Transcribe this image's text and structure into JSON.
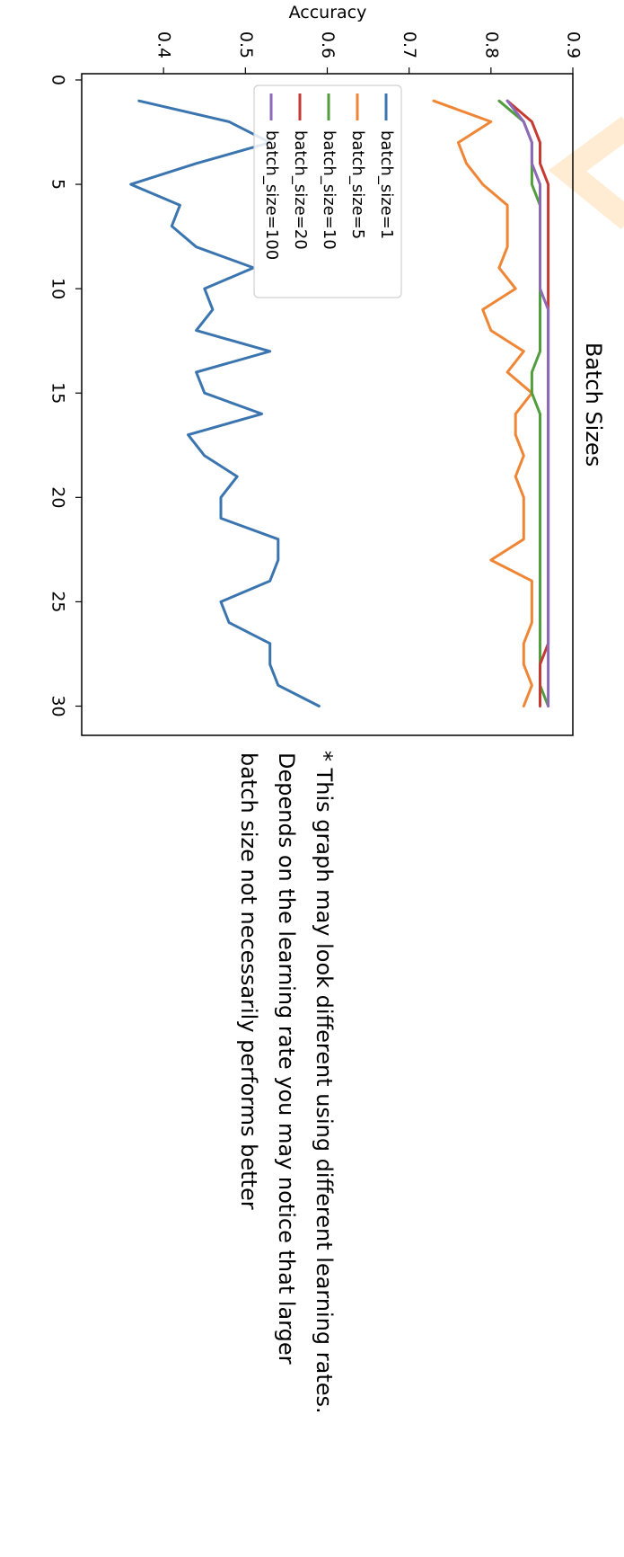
{
  "chart_data": {
    "type": "line",
    "title": "Batch Sizes",
    "xlabel": "",
    "ylabel": "Accuracy",
    "xlim": [
      -0.3,
      31.4
    ],
    "ylim": [
      0.3,
      0.9
    ],
    "xticks": [
      0,
      5,
      10,
      15,
      20,
      25,
      30
    ],
    "yticks": [
      0.4,
      0.5,
      0.6,
      0.7,
      0.8,
      0.9
    ],
    "grid": false,
    "legend": "top-left",
    "colors": {
      "batch_size=1": "#3b75af",
      "batch_size=5": "#ef8636",
      "batch_size=10": "#519e3e",
      "batch_size=20": "#c53a32",
      "batch_size=100": "#8d69b8"
    },
    "series": [
      {
        "name": "batch_size=1",
        "x": [
          1,
          2,
          3,
          4,
          5,
          6,
          7,
          8,
          9,
          10,
          11,
          12,
          13,
          14,
          15,
          16,
          17,
          18,
          19,
          20,
          21,
          22,
          23,
          24,
          25,
          26,
          27,
          28,
          29,
          30
        ],
        "values": [
          0.37,
          0.48,
          0.53,
          0.44,
          0.36,
          0.42,
          0.41,
          0.44,
          0.51,
          0.45,
          0.46,
          0.44,
          0.53,
          0.44,
          0.45,
          0.52,
          0.43,
          0.45,
          0.49,
          0.47,
          0.47,
          0.54,
          0.54,
          0.53,
          0.47,
          0.48,
          0.53,
          0.53,
          0.54,
          0.59
        ]
      },
      {
        "name": "batch_size=5",
        "x": [
          1,
          2,
          3,
          4,
          5,
          6,
          7,
          8,
          9,
          10,
          11,
          12,
          13,
          14,
          15,
          16,
          17,
          18,
          19,
          20,
          21,
          22,
          23,
          24,
          25,
          26,
          27,
          28,
          29,
          30
        ],
        "values": [
          0.73,
          0.8,
          0.76,
          0.77,
          0.79,
          0.82,
          0.82,
          0.82,
          0.81,
          0.83,
          0.79,
          0.8,
          0.84,
          0.82,
          0.85,
          0.83,
          0.83,
          0.84,
          0.83,
          0.84,
          0.84,
          0.84,
          0.8,
          0.85,
          0.85,
          0.85,
          0.84,
          0.84,
          0.85,
          0.84
        ]
      },
      {
        "name": "batch_size=10",
        "x": [
          1,
          2,
          3,
          4,
          5,
          6,
          7,
          8,
          9,
          10,
          11,
          12,
          13,
          14,
          15,
          16,
          17,
          18,
          19,
          20,
          21,
          22,
          23,
          24,
          25,
          26,
          27,
          28,
          29,
          30
        ],
        "values": [
          0.81,
          0.84,
          0.85,
          0.85,
          0.85,
          0.86,
          0.86,
          0.86,
          0.86,
          0.86,
          0.86,
          0.86,
          0.86,
          0.85,
          0.85,
          0.86,
          0.86,
          0.86,
          0.86,
          0.86,
          0.86,
          0.86,
          0.86,
          0.86,
          0.86,
          0.86,
          0.86,
          0.86,
          0.86,
          0.87
        ]
      },
      {
        "name": "batch_size=20",
        "x": [
          1,
          2,
          3,
          4,
          5,
          6,
          7,
          8,
          9,
          10,
          11,
          12,
          13,
          14,
          15,
          16,
          17,
          18,
          19,
          20,
          21,
          22,
          23,
          24,
          25,
          26,
          27,
          28,
          29,
          30
        ],
        "values": [
          0.82,
          0.85,
          0.86,
          0.86,
          0.87,
          0.87,
          0.87,
          0.87,
          0.87,
          0.87,
          0.87,
          0.87,
          0.87,
          0.87,
          0.87,
          0.87,
          0.87,
          0.87,
          0.87,
          0.87,
          0.87,
          0.87,
          0.87,
          0.87,
          0.87,
          0.87,
          0.87,
          0.86,
          0.86,
          0.86
        ]
      },
      {
        "name": "batch_size=100",
        "x": [
          1,
          2,
          3,
          4,
          5,
          6,
          7,
          8,
          9,
          10,
          11,
          12,
          13,
          14,
          15,
          16,
          17,
          18,
          19,
          20,
          21,
          22,
          23,
          24,
          25,
          26,
          27,
          28,
          29,
          30
        ],
        "values": [
          0.82,
          0.84,
          0.85,
          0.85,
          0.86,
          0.86,
          0.86,
          0.86,
          0.86,
          0.86,
          0.87,
          0.87,
          0.87,
          0.87,
          0.87,
          0.87,
          0.87,
          0.87,
          0.87,
          0.87,
          0.87,
          0.87,
          0.87,
          0.87,
          0.87,
          0.87,
          0.87,
          0.87,
          0.87,
          0.87
        ]
      }
    ]
  },
  "note": {
    "lines": [
      "* This graph may look different using different learning rates.",
      "Depends on the learning rate you may notice that larger",
      "batch size not necessarily performs better"
    ]
  }
}
